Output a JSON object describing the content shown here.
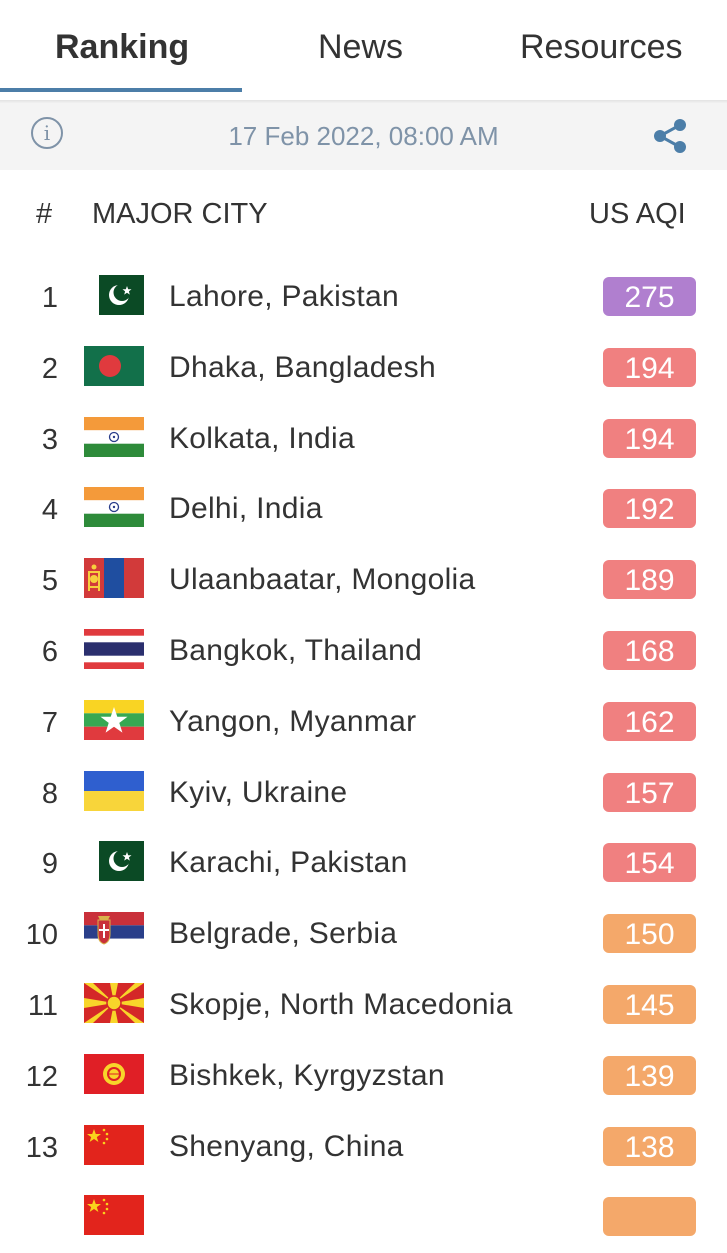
{
  "tabs": [
    {
      "label": "Ranking",
      "active": true
    },
    {
      "label": "News",
      "active": false
    },
    {
      "label": "Resources",
      "active": false
    }
  ],
  "info_bar": {
    "timestamp": "17 Feb 2022, 08:00 AM",
    "info_icon": "info-icon",
    "share_icon": "share-icon"
  },
  "table_header": {
    "rank": "#",
    "city": "MAJOR CITY",
    "aqi": "US AQI"
  },
  "colors": {
    "unhealthy_very": "#b07fcf",
    "unhealthy": "#f08080",
    "sensitive": "#f4a86a",
    "accent": "#4c7ea8"
  },
  "rows": [
    {
      "rank": "1",
      "city": "Lahore, Pakistan",
      "aqi": "275",
      "flag": "pakistan",
      "color": "#b07fcf"
    },
    {
      "rank": "2",
      "city": "Dhaka, Bangladesh",
      "aqi": "194",
      "flag": "bangladesh",
      "color": "#f08080"
    },
    {
      "rank": "3",
      "city": "Kolkata, India",
      "aqi": "194",
      "flag": "india",
      "color": "#f08080"
    },
    {
      "rank": "4",
      "city": "Delhi, India",
      "aqi": "192",
      "flag": "india",
      "color": "#f08080"
    },
    {
      "rank": "5",
      "city": "Ulaanbaatar, Mongolia",
      "aqi": "189",
      "flag": "mongolia",
      "color": "#f08080"
    },
    {
      "rank": "6",
      "city": "Bangkok, Thailand",
      "aqi": "168",
      "flag": "thailand",
      "color": "#f08080"
    },
    {
      "rank": "7",
      "city": "Yangon, Myanmar",
      "aqi": "162",
      "flag": "myanmar",
      "color": "#f08080"
    },
    {
      "rank": "8",
      "city": "Kyiv, Ukraine",
      "aqi": "157",
      "flag": "ukraine",
      "color": "#f08080"
    },
    {
      "rank": "9",
      "city": "Karachi, Pakistan",
      "aqi": "154",
      "flag": "pakistan",
      "color": "#f08080"
    },
    {
      "rank": "10",
      "city": "Belgrade, Serbia",
      "aqi": "150",
      "flag": "serbia",
      "color": "#f4a86a"
    },
    {
      "rank": "11",
      "city": "Skopje, North Macedonia",
      "aqi": "145",
      "flag": "north-macedonia",
      "color": "#f4a86a"
    },
    {
      "rank": "12",
      "city": "Bishkek, Kyrgyzstan",
      "aqi": "139",
      "flag": "kyrgyzstan",
      "color": "#f4a86a"
    },
    {
      "rank": "13",
      "city": "Shenyang, China",
      "aqi": "138",
      "flag": "china",
      "color": "#f4a86a"
    },
    {
      "rank": "",
      "city": "",
      "aqi": "",
      "flag": "china",
      "color": "#f4a86a"
    }
  ]
}
